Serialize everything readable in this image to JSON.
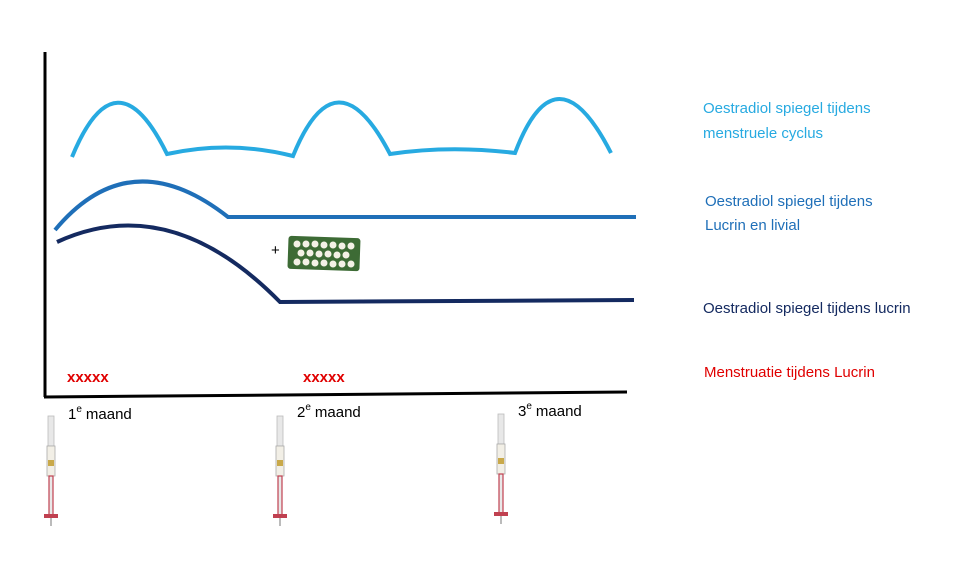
{
  "legend": [
    {
      "lines": [
        "Oestradiol spiegel tijdens",
        "menstruele cyclus"
      ]
    },
    {
      "lines": [
        "Oestradiol spiegel tijdens",
        "Lucrin en livial"
      ]
    },
    {
      "lines": [
        "Oestradiol spiegel tijdens lucrin"
      ]
    },
    {
      "lines": [
        "Menstruatie tijdens Lucrin"
      ]
    }
  ],
  "markers": [
    "xxxxx",
    "xxxxx"
  ],
  "plus": "+",
  "months": [
    {
      "number": "1",
      "suffix": "e",
      "label": "maand"
    },
    {
      "number": "2",
      "suffix": "e",
      "label": "maand"
    },
    {
      "number": "3",
      "suffix": "e",
      "label": "maand"
    }
  ]
}
